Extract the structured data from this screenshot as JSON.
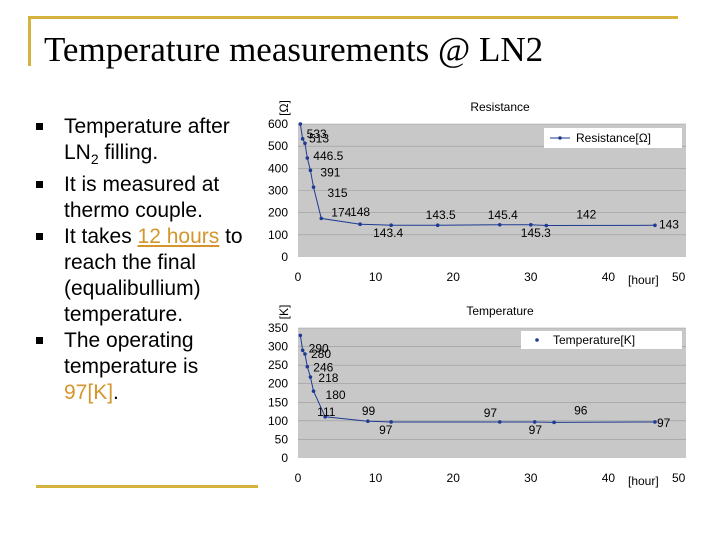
{
  "slide": {
    "title": "Temperature measurements @ LN2",
    "bullets": [
      {
        "pre": "Temperature after LN",
        "sub": "2",
        "post": " filling."
      },
      {
        "pre": "It is measured at thermo couple."
      },
      {
        "pre": "It takes ",
        "hl": "12 hours",
        "post": " to reach the final (equalibullium) temperature."
      },
      {
        "pre": "The operating temperature is ",
        "orange": "97[K]",
        "post": "."
      }
    ]
  },
  "chart_data": [
    {
      "type": "line",
      "title": "Resistance",
      "ylabel": "[Ω]",
      "xlabel": "[hour]",
      "xlim": [
        0,
        50
      ],
      "ylim": [
        0,
        600
      ],
      "xticks": [
        0,
        10,
        20,
        30,
        40,
        50
      ],
      "yticks": [
        0,
        100,
        200,
        300,
        400,
        500,
        600
      ],
      "grid": true,
      "legend_position": "top-right",
      "series": [
        {
          "name": "Resistance[Ω]",
          "x": [
            0.3,
            0.6,
            0.9,
            1.2,
            1.6,
            2.0,
            3.0,
            8.0,
            12.0,
            18.0,
            26.0,
            30.0,
            32.0,
            46.0
          ],
          "y": [
            600,
            533,
            513,
            446.5,
            391,
            315,
            174,
            148,
            143.4,
            143.5,
            145.4,
            145.3,
            142,
            143
          ],
          "labels": [
            "",
            "533",
            "513",
            "446.5",
            "391",
            "315",
            "174",
            "148",
            "143.4",
            "143.5",
            "145.4",
            "145.3",
            "142",
            "143"
          ]
        }
      ]
    },
    {
      "type": "line",
      "title": "Temperature",
      "ylabel": "[K]",
      "xlabel": "[hour]",
      "xlim": [
        0,
        50
      ],
      "ylim": [
        0,
        350
      ],
      "xticks": [
        0,
        10,
        20,
        30,
        40,
        50
      ],
      "yticks": [
        0,
        50,
        100,
        150,
        200,
        250,
        300,
        350
      ],
      "grid": true,
      "legend_position": "top-right",
      "series": [
        {
          "name": "Temperature[K]",
          "x": [
            0.3,
            0.6,
            0.9,
            1.2,
            1.6,
            2.0,
            3.5,
            9.0,
            12.0,
            26.0,
            30.5,
            33.0,
            46.0
          ],
          "y": [
            330,
            290,
            280,
            246,
            218,
            180,
            111,
            99,
            97,
            97,
            97,
            96,
            97
          ],
          "labels": [
            "",
            "290",
            "280",
            "246",
            "218",
            "180",
            "111",
            "99",
            "97",
            "97",
            "97",
            "96",
            "97"
          ]
        }
      ]
    }
  ]
}
